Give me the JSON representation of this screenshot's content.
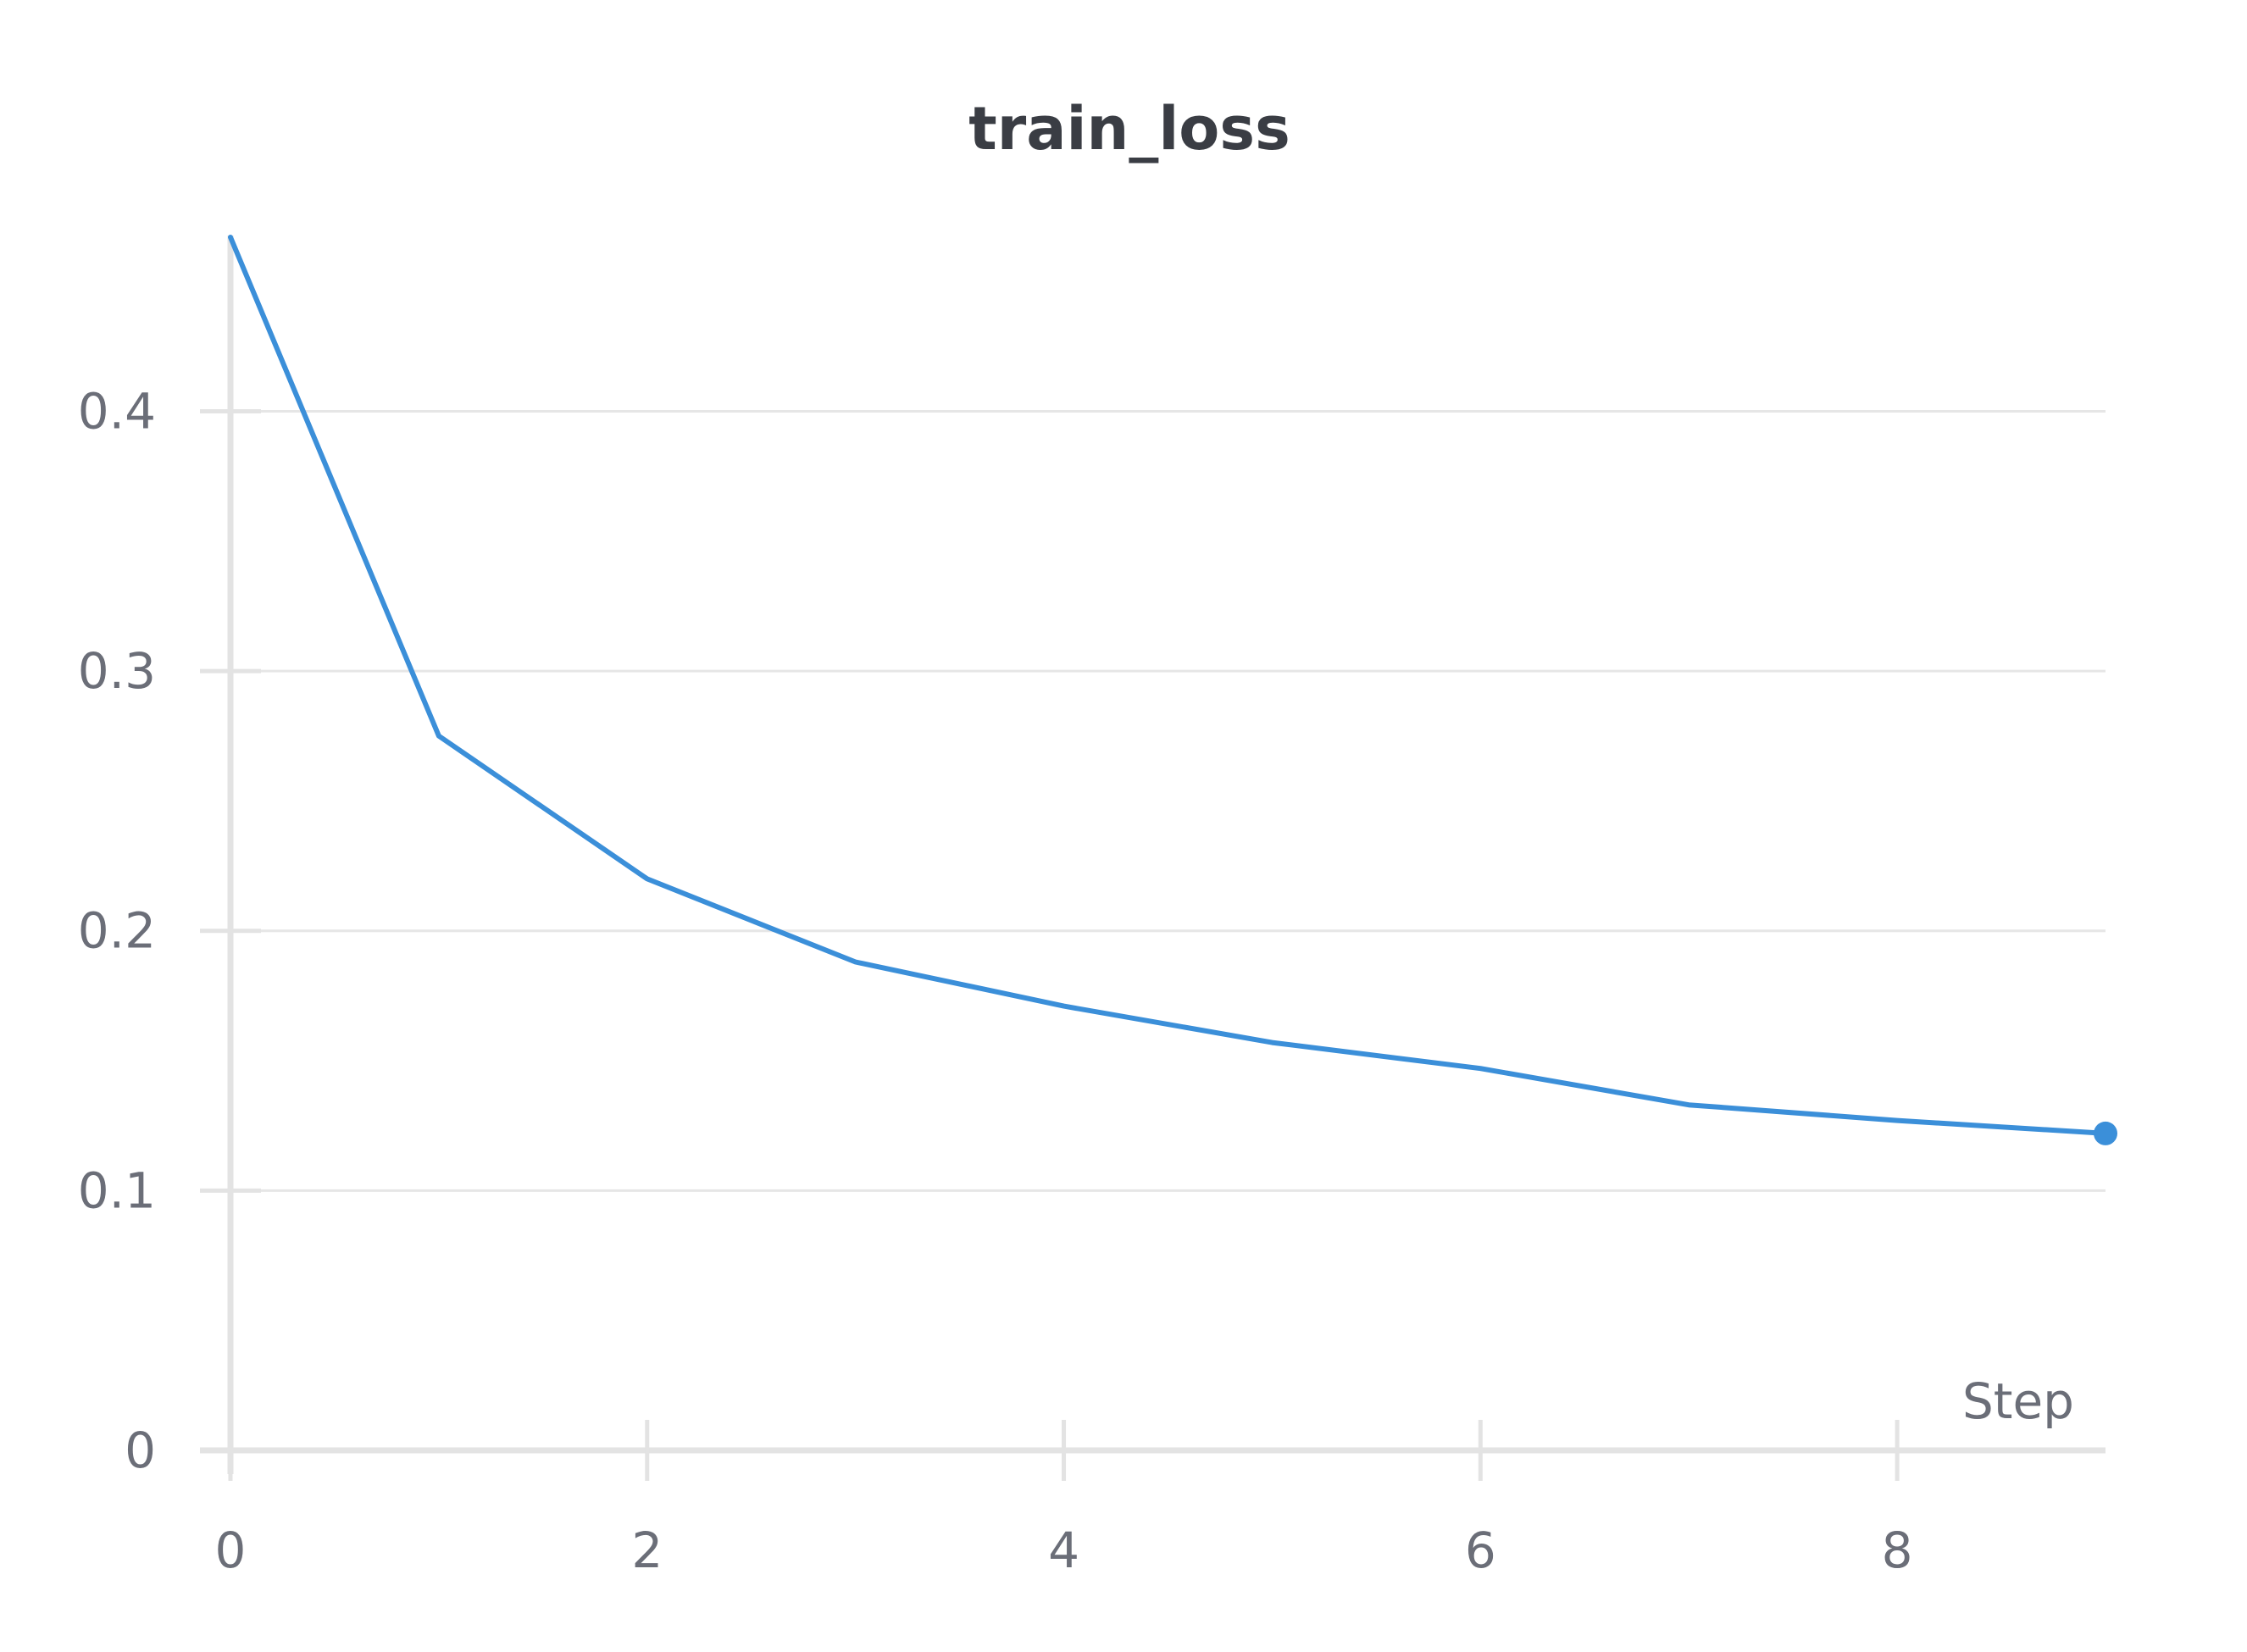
{
  "chart_data": {
    "type": "line",
    "title": "train_loss",
    "xlabel": "Step",
    "ylabel": "",
    "xlim": [
      0,
      9
    ],
    "ylim": [
      0,
      0.467
    ],
    "x_ticks": [
      0,
      2,
      4,
      6,
      8
    ],
    "y_ticks": [
      0,
      0.1,
      0.2,
      0.3,
      0.4
    ],
    "x_tick_labels": [
      "0",
      "2",
      "4",
      "6",
      "8"
    ],
    "y_tick_labels": [
      "0",
      "0.1",
      "0.2",
      "0.3",
      "0.4"
    ],
    "grid": "horizontal",
    "legend": "none",
    "series": [
      {
        "color": "#3b8fd9",
        "x": [
          0,
          1,
          2,
          3,
          4,
          5,
          6,
          7,
          8,
          9
        ],
        "values": [
          0.467,
          0.275,
          0.22,
          0.188,
          0.171,
          0.157,
          0.147,
          0.133,
          0.127,
          0.122
        ],
        "last_point_marker": true
      }
    ]
  },
  "colors": {
    "line": "#3b8fd9",
    "grid": "#e6e6e6",
    "axis": "#e3e3e3",
    "tick_text": "#6b6e78",
    "title_text": "#3a3d44"
  }
}
